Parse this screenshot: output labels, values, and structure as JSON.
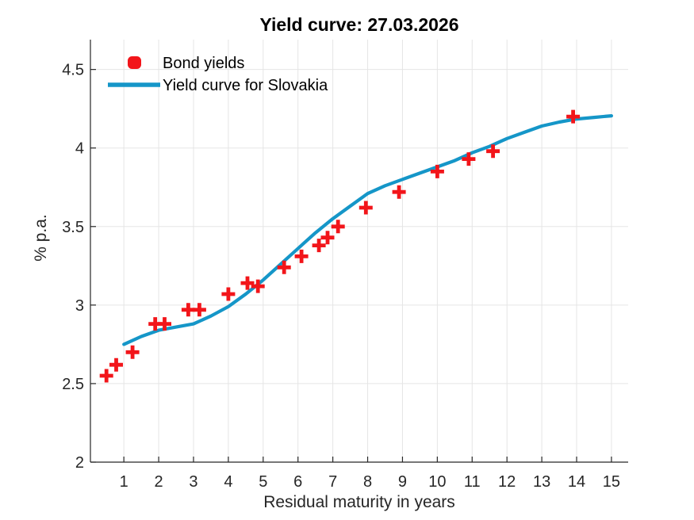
{
  "figure": {
    "title": "Yield curve: 27.03.2026"
  },
  "legend": {
    "position": "top-left",
    "items": [
      {
        "label": "Bond yields",
        "marker": "red-plus-blob"
      },
      {
        "label": "Yield curve for Slovakia",
        "marker": "blue-line-sample"
      }
    ]
  },
  "chart_data": {
    "type": "scatter+line",
    "title": "Yield curve: 27.03.2026",
    "xlabel": "Residual maturity in years",
    "ylabel": "% p.a.",
    "xlim": [
      0.04,
      15.48
    ],
    "ylim": [
      2,
      4.69
    ],
    "xticks": [
      1,
      2,
      3,
      4,
      5,
      6,
      7,
      8,
      9,
      10,
      11,
      12,
      13,
      14,
      15
    ],
    "yticks": [
      2,
      2.5,
      3,
      3.5,
      4,
      4.5
    ],
    "grid": true,
    "background_color": "#ffffff",
    "grid_color": "#e5e5e5",
    "axis_color": "#262626",
    "text_color": "#262626",
    "title_color": "#000000",
    "legend_position": "top-left",
    "series": [
      {
        "name": "Bond yields",
        "style": "scatter",
        "marker": "plus",
        "color": "#f2151a",
        "points": [
          [
            0.5,
            2.55
          ],
          [
            0.78,
            2.62
          ],
          [
            1.25,
            2.7
          ],
          [
            1.9,
            2.88
          ],
          [
            2.17,
            2.88
          ],
          [
            2.85,
            2.97
          ],
          [
            3.17,
            2.97
          ],
          [
            4.0,
            3.07
          ],
          [
            4.55,
            3.14
          ],
          [
            4.85,
            3.12
          ],
          [
            5.6,
            3.24
          ],
          [
            6.1,
            3.31
          ],
          [
            6.6,
            3.38
          ],
          [
            6.85,
            3.43
          ],
          [
            7.15,
            3.5
          ],
          [
            7.95,
            3.62
          ],
          [
            8.9,
            3.72
          ],
          [
            10.0,
            3.85
          ],
          [
            10.9,
            3.93
          ],
          [
            11.6,
            3.98
          ],
          [
            13.9,
            4.2
          ]
        ]
      },
      {
        "name": "Yield curve for Slovakia",
        "style": "line",
        "color": "#1596c8",
        "line_width": 4.2,
        "points": [
          [
            1,
            2.75
          ],
          [
            1.5,
            2.8
          ],
          [
            2,
            2.84
          ],
          [
            2.5,
            2.86
          ],
          [
            3,
            2.88
          ],
          [
            3.5,
            2.93
          ],
          [
            4,
            2.99
          ],
          [
            4.5,
            3.07
          ],
          [
            5,
            3.16
          ],
          [
            5.5,
            3.26
          ],
          [
            6,
            3.36
          ],
          [
            6.5,
            3.46
          ],
          [
            7,
            3.55
          ],
          [
            7.5,
            3.63
          ],
          [
            8,
            3.71
          ],
          [
            8.5,
            3.76
          ],
          [
            9,
            3.8
          ],
          [
            9.5,
            3.84
          ],
          [
            10,
            3.88
          ],
          [
            10.5,
            3.92
          ],
          [
            11,
            3.97
          ],
          [
            11.5,
            4.01
          ],
          [
            12,
            4.06
          ],
          [
            12.5,
            4.1
          ],
          [
            13,
            4.14
          ],
          [
            13.5,
            4.165
          ],
          [
            14,
            4.185
          ],
          [
            14.5,
            4.195
          ],
          [
            15,
            4.205
          ]
        ]
      }
    ]
  }
}
